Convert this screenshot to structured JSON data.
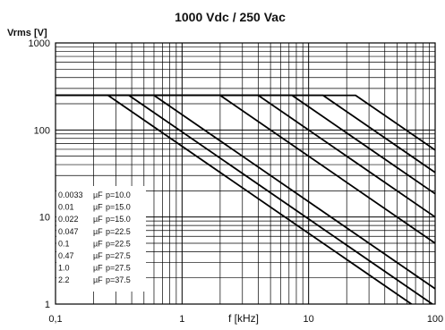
{
  "chart_data": {
    "type": "line",
    "title": "1000 Vdc / 250 Vac",
    "ylabel": "Vrms [V]",
    "xlabel": "f [kHz]",
    "x_scale": "log",
    "y_scale": "log",
    "xlim": [
      0.1,
      100
    ],
    "ylim": [
      1,
      1000
    ],
    "x_ticks": [
      "0,1",
      "1",
      "10",
      "100"
    ],
    "y_ticks": [
      "1",
      "10",
      "100",
      "1000"
    ],
    "grid": true,
    "legend": "bottom-left",
    "legend_unit": "µF",
    "legend_columns": [
      "C",
      "unit",
      "pitch"
    ],
    "series": [
      {
        "name": "0.0033",
        "pitch": "p=10.0",
        "x": [
          0.1,
          23.5,
          100
        ],
        "y": [
          250,
          250,
          58.8
        ]
      },
      {
        "name": "0.01",
        "pitch": "p=15.0",
        "x": [
          0.1,
          13.0,
          100
        ],
        "y": [
          250,
          250,
          32.5
        ]
      },
      {
        "name": "0.022",
        "pitch": "p=15.0",
        "x": [
          0.1,
          7.4,
          100
        ],
        "y": [
          250,
          250,
          18.5
        ]
      },
      {
        "name": "0.047",
        "pitch": "p=22.5",
        "x": [
          0.1,
          4.0,
          100
        ],
        "y": [
          250,
          250,
          10.0
        ]
      },
      {
        "name": "0.1",
        "pitch": "p=22.5",
        "x": [
          0.1,
          2.0,
          100
        ],
        "y": [
          250,
          250,
          5.0
        ]
      },
      {
        "name": "0.47",
        "pitch": "p=27.5",
        "x": [
          0.1,
          0.6,
          100
        ],
        "y": [
          250,
          250,
          1.5
        ]
      },
      {
        "name": "1.0",
        "pitch": "p=27.5",
        "x": [
          0.1,
          0.38,
          100
        ],
        "y": [
          250,
          250,
          0.95
        ]
      },
      {
        "name": "2.2",
        "pitch": "p=37.5",
        "x": [
          0.1,
          0.26,
          100
        ],
        "y": [
          250,
          250,
          0.65
        ]
      }
    ]
  }
}
